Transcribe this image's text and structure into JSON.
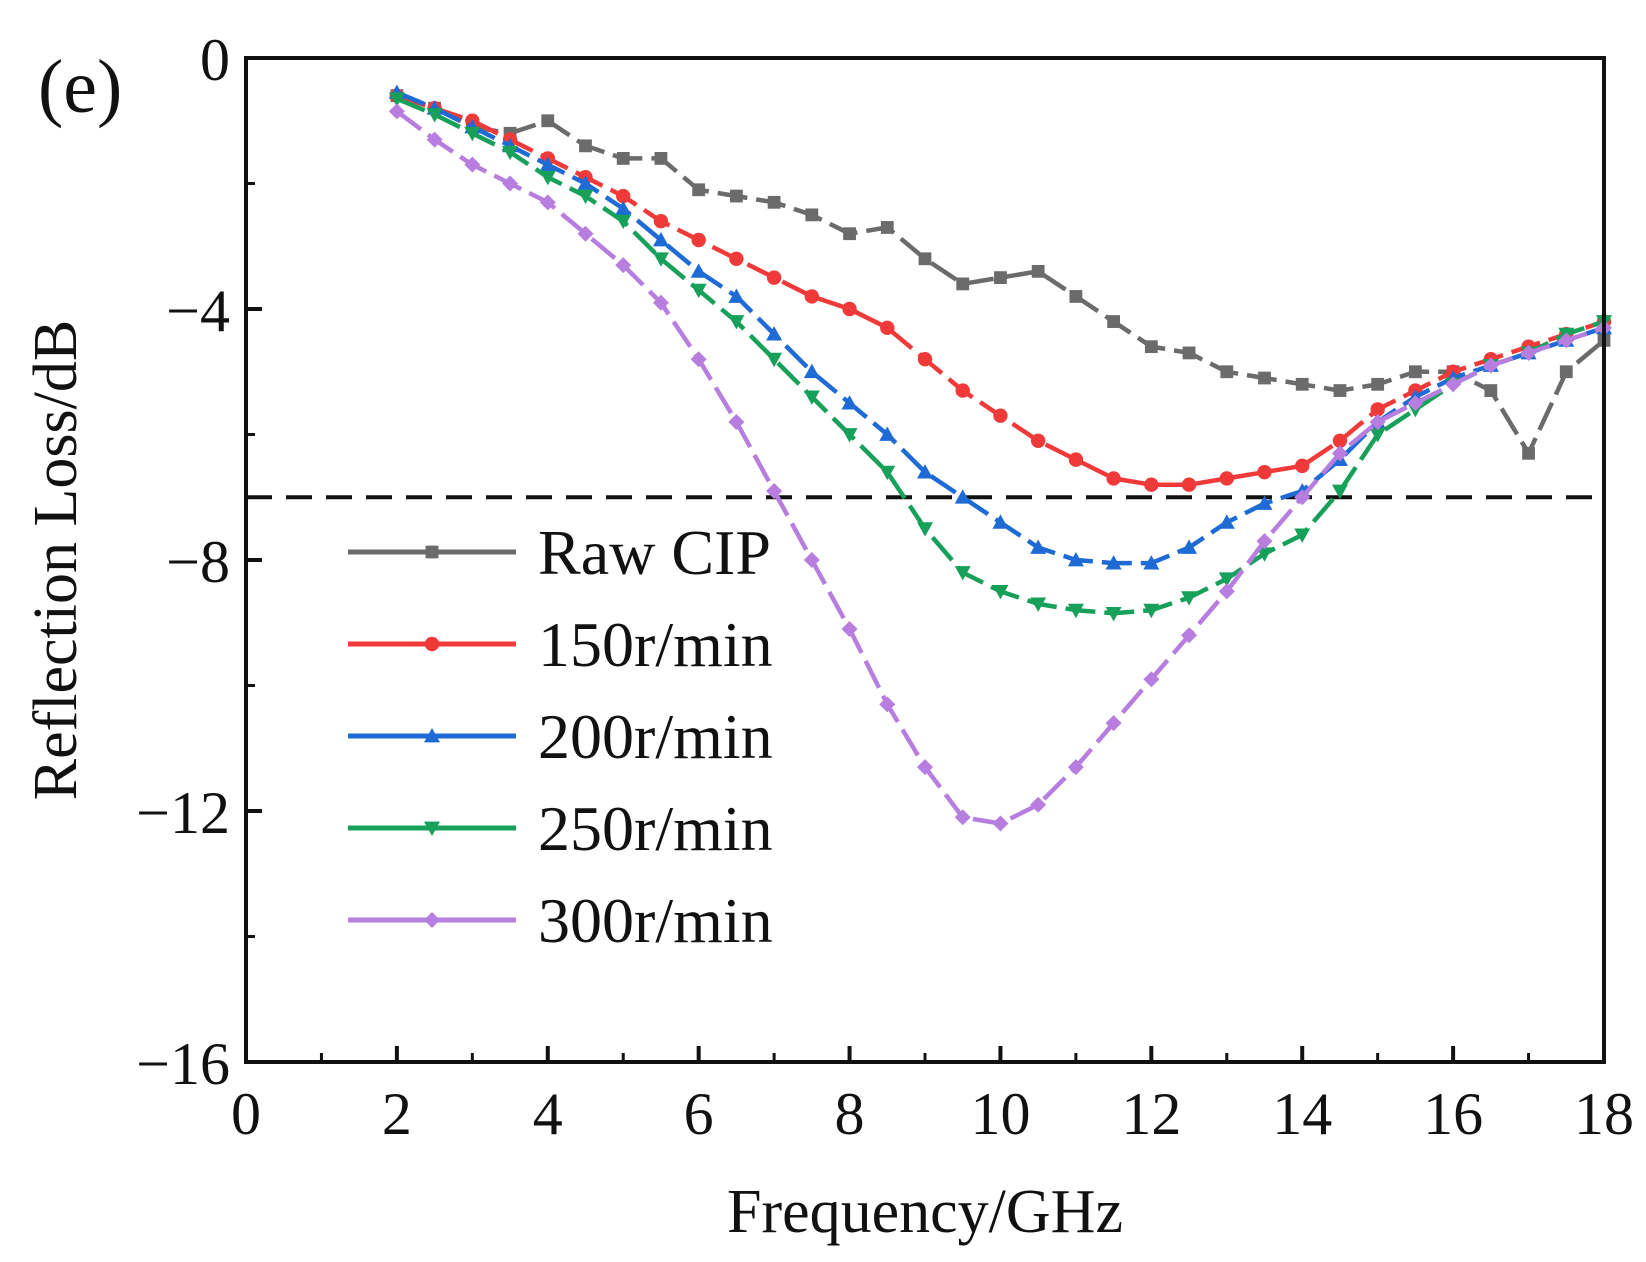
{
  "chart_data": {
    "type": "line",
    "panel_label": "(e)",
    "title": "",
    "xlabel": "Frequency/GHz",
    "ylabel": "Reflection Loss/dB",
    "xlim": [
      0,
      18
    ],
    "ylim": [
      -16,
      0
    ],
    "xticks": [
      0,
      2,
      4,
      6,
      8,
      10,
      12,
      14,
      16,
      18
    ],
    "xtick_labels": [
      "0",
      "2",
      "4",
      "6",
      "8",
      "10",
      "12",
      "14",
      "16",
      "18"
    ],
    "yticks": [
      0,
      -4,
      -8,
      -12,
      -16
    ],
    "ytick_labels": [
      "0",
      "−4",
      "−8",
      "−12",
      "−16"
    ],
    "reference_line": {
      "y": -7,
      "style": "dashed",
      "color": "#111111"
    },
    "legend_position": "center-left",
    "x": [
      2,
      2.5,
      3,
      3.5,
      4,
      4.5,
      5,
      5.5,
      6,
      6.5,
      7,
      7.5,
      8,
      8.5,
      9,
      9.5,
      10,
      10.5,
      11,
      11.5,
      12,
      12.5,
      13,
      13.5,
      14,
      14.5,
      15,
      15.5,
      16,
      16.5,
      17,
      17.5,
      18
    ],
    "series": [
      {
        "name": "Raw CIP",
        "color": "#6b6b6b",
        "marker": "square",
        "values": [
          -0.6,
          -0.8,
          -1.1,
          -1.2,
          -1.0,
          -1.4,
          -1.6,
          -1.6,
          -2.1,
          -2.2,
          -2.3,
          -2.5,
          -2.8,
          -2.7,
          -3.2,
          -3.6,
          -3.5,
          -3.4,
          -3.8,
          -4.2,
          -4.6,
          -4.7,
          -5.0,
          -5.1,
          -5.2,
          -5.3,
          -5.2,
          -5.0,
          -5.0,
          -5.3,
          -6.3,
          -5.0,
          -4.5
        ]
      },
      {
        "name": "150r/min",
        "color": "#f03a3a",
        "marker": "circle",
        "values": [
          -0.6,
          -0.8,
          -1.0,
          -1.3,
          -1.6,
          -1.9,
          -2.2,
          -2.6,
          -2.9,
          -3.2,
          -3.5,
          -3.8,
          -4.0,
          -4.3,
          -4.8,
          -5.3,
          -5.7,
          -6.1,
          -6.4,
          -6.7,
          -6.8,
          -6.8,
          -6.7,
          -6.6,
          -6.5,
          -6.1,
          -5.6,
          -5.3,
          -5.0,
          -4.8,
          -4.6,
          -4.4,
          -4.2
        ]
      },
      {
        "name": "200r/min",
        "color": "#1e6bd6",
        "marker": "triangle-up",
        "values": [
          -0.55,
          -0.8,
          -1.1,
          -1.4,
          -1.7,
          -2.0,
          -2.4,
          -2.9,
          -3.4,
          -3.8,
          -4.4,
          -5.0,
          -5.5,
          -6.0,
          -6.6,
          -7.0,
          -7.4,
          -7.8,
          -8.0,
          -8.05,
          -8.05,
          -7.8,
          -7.4,
          -7.1,
          -6.9,
          -6.4,
          -5.8,
          -5.4,
          -5.1,
          -4.9,
          -4.7,
          -4.5,
          -4.3
        ]
      },
      {
        "name": "250r/min",
        "color": "#17a05a",
        "marker": "triangle-down",
        "values": [
          -0.65,
          -0.9,
          -1.2,
          -1.5,
          -1.9,
          -2.2,
          -2.6,
          -3.2,
          -3.7,
          -4.2,
          -4.8,
          -5.4,
          -6.0,
          -6.6,
          -7.5,
          -8.2,
          -8.5,
          -8.7,
          -8.8,
          -8.85,
          -8.8,
          -8.6,
          -8.3,
          -7.9,
          -7.6,
          -6.9,
          -6.0,
          -5.6,
          -5.2,
          -4.9,
          -4.7,
          -4.4,
          -4.2
        ]
      },
      {
        "name": "300r/min",
        "color": "#b77ee0",
        "marker": "diamond",
        "values": [
          -0.85,
          -1.3,
          -1.7,
          -2.0,
          -2.3,
          -2.8,
          -3.3,
          -3.9,
          -4.8,
          -5.8,
          -6.9,
          -8.0,
          -9.1,
          -10.3,
          -11.3,
          -12.1,
          -12.2,
          -11.9,
          -11.3,
          -10.6,
          -9.9,
          -9.2,
          -8.5,
          -7.7,
          -7.0,
          -6.3,
          -5.8,
          -5.5,
          -5.2,
          -4.9,
          -4.7,
          -4.5,
          -4.3
        ]
      }
    ]
  }
}
